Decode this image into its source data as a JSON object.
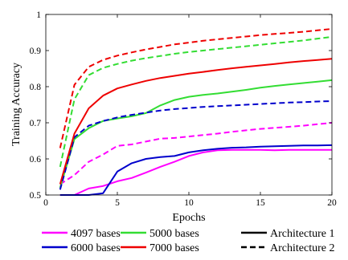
{
  "chart_data": {
    "type": "line",
    "xlabel": "Epochs",
    "ylabel": "Training Accuracy",
    "xlim": [
      0,
      20
    ],
    "ylim": [
      0.5,
      1.0
    ],
    "xticks": [
      0,
      5,
      10,
      15,
      20
    ],
    "xtick_labels": [
      "0",
      "5",
      "10",
      "15",
      "20"
    ],
    "yticks": [
      0.5,
      0.6,
      0.7,
      0.8,
      0.9,
      1.0
    ],
    "ytick_labels": [
      "0.5",
      "0.6",
      "0.7",
      "0.8",
      "0.9",
      "1"
    ],
    "grid": false,
    "x": [
      1,
      2,
      3,
      4,
      5,
      6,
      7,
      8,
      9,
      10,
      11,
      12,
      13,
      14,
      15,
      16,
      17,
      18,
      19,
      20
    ],
    "series": [
      {
        "name": "4097 bases",
        "color": "#ff00ff",
        "style": "solid",
        "values": [
          0.5,
          0.5,
          0.518,
          0.525,
          0.538,
          0.547,
          0.562,
          0.578,
          0.592,
          0.608,
          0.618,
          0.624,
          0.625,
          0.625,
          0.625,
          0.624,
          0.625,
          0.625,
          0.625,
          0.625
        ]
      },
      {
        "name": "4097 bases",
        "color": "#ff00ff",
        "style": "dashed",
        "values": [
          0.53,
          0.555,
          0.592,
          0.612,
          0.636,
          0.64,
          0.648,
          0.656,
          0.658,
          0.662,
          0.666,
          0.67,
          0.675,
          0.679,
          0.683,
          0.686,
          0.689,
          0.692,
          0.696,
          0.7
        ]
      },
      {
        "name": "5000 bases",
        "color": "#33dd33",
        "style": "solid",
        "values": [
          0.52,
          0.655,
          0.685,
          0.705,
          0.712,
          0.718,
          0.727,
          0.748,
          0.763,
          0.772,
          0.777,
          0.781,
          0.786,
          0.791,
          0.797,
          0.802,
          0.806,
          0.81,
          0.814,
          0.818
        ]
      },
      {
        "name": "5000 bases",
        "color": "#33dd33",
        "style": "dashed",
        "values": [
          0.578,
          0.765,
          0.832,
          0.852,
          0.863,
          0.872,
          0.879,
          0.885,
          0.891,
          0.896,
          0.9,
          0.904,
          0.908,
          0.912,
          0.916,
          0.92,
          0.924,
          0.928,
          0.933,
          0.938
        ]
      },
      {
        "name": "6000 bases",
        "color": "#0000cc",
        "style": "solid",
        "values": [
          0.5,
          0.5,
          0.5,
          0.505,
          0.565,
          0.588,
          0.6,
          0.605,
          0.608,
          0.618,
          0.624,
          0.628,
          0.631,
          0.632,
          0.634,
          0.635,
          0.636,
          0.637,
          0.637,
          0.638
        ]
      },
      {
        "name": "6000 bases",
        "color": "#0000cc",
        "style": "dashed",
        "values": [
          0.515,
          0.66,
          0.692,
          0.705,
          0.715,
          0.722,
          0.728,
          0.734,
          0.738,
          0.741,
          0.744,
          0.746,
          0.748,
          0.75,
          0.752,
          0.754,
          0.756,
          0.757,
          0.759,
          0.76
        ]
      },
      {
        "name": "7000 bases",
        "color": "#ee0000",
        "style": "solid",
        "values": [
          0.53,
          0.67,
          0.74,
          0.775,
          0.795,
          0.806,
          0.816,
          0.824,
          0.83,
          0.836,
          0.841,
          0.846,
          0.851,
          0.855,
          0.859,
          0.863,
          0.867,
          0.871,
          0.874,
          0.877
        ]
      },
      {
        "name": "7000 bases",
        "color": "#ee0000",
        "style": "dashed",
        "values": [
          0.63,
          0.805,
          0.855,
          0.874,
          0.886,
          0.895,
          0.903,
          0.91,
          0.917,
          0.922,
          0.927,
          0.931,
          0.935,
          0.939,
          0.943,
          0.946,
          0.949,
          0.952,
          0.956,
          0.96
        ]
      }
    ],
    "legend": {
      "placement": "bottom",
      "entries": [
        {
          "label": "4097 bases",
          "color": "#ff00ff",
          "style": "solid"
        },
        {
          "label": "5000 bases",
          "color": "#33dd33",
          "style": "solid"
        },
        {
          "label": "Architecture 1",
          "color": "#000000",
          "style": "solid"
        },
        {
          "label": "6000 bases",
          "color": "#0000cc",
          "style": "solid"
        },
        {
          "label": "7000 bases",
          "color": "#ee0000",
          "style": "solid"
        },
        {
          "label": "Architecture 2",
          "color": "#000000",
          "style": "dashed"
        }
      ]
    }
  }
}
